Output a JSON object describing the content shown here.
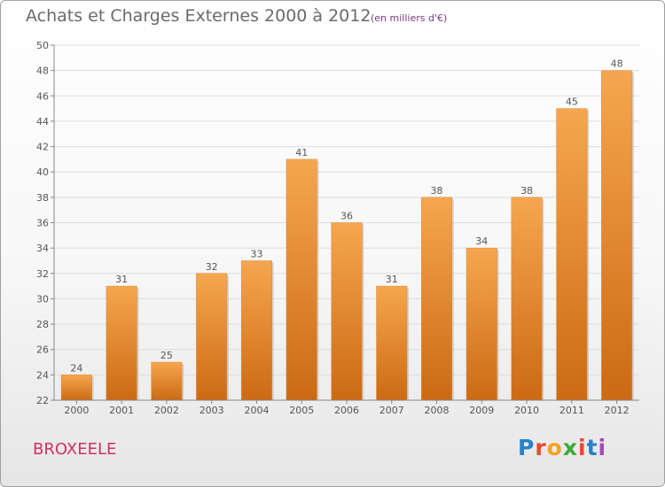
{
  "header": {
    "title": "Achats et Charges Externes 2000 à 2012",
    "subtitle": "(en milliers d'€)"
  },
  "footer": {
    "town": "BROXEELE",
    "logo_letters": [
      "P",
      "r",
      "o",
      "x",
      "i",
      "t",
      "i"
    ],
    "logo_colors": [
      "#2a82c8",
      "#e8482c",
      "#f2a21c",
      "#3aaa3a",
      "#e8482c",
      "#2a82c8",
      "#a04ab8"
    ]
  },
  "colors": {
    "bar_top": "#f6a650",
    "bar_bottom": "#cc6a14",
    "grid": "#dcdcdc",
    "axis": "#888888",
    "text": "#555555"
  },
  "chart_data": {
    "type": "bar",
    "categories": [
      "2000",
      "2001",
      "2002",
      "2003",
      "2004",
      "2005",
      "2006",
      "2007",
      "2008",
      "2009",
      "2010",
      "2011",
      "2012"
    ],
    "values": [
      24,
      31,
      25,
      32,
      33,
      41,
      36,
      31,
      38,
      34,
      38,
      45,
      48
    ],
    "ylim": [
      22,
      50
    ],
    "yticks": [
      22,
      24,
      26,
      28,
      30,
      32,
      34,
      36,
      38,
      40,
      42,
      44,
      46,
      48,
      50
    ],
    "grid": true,
    "data_labels": true
  }
}
